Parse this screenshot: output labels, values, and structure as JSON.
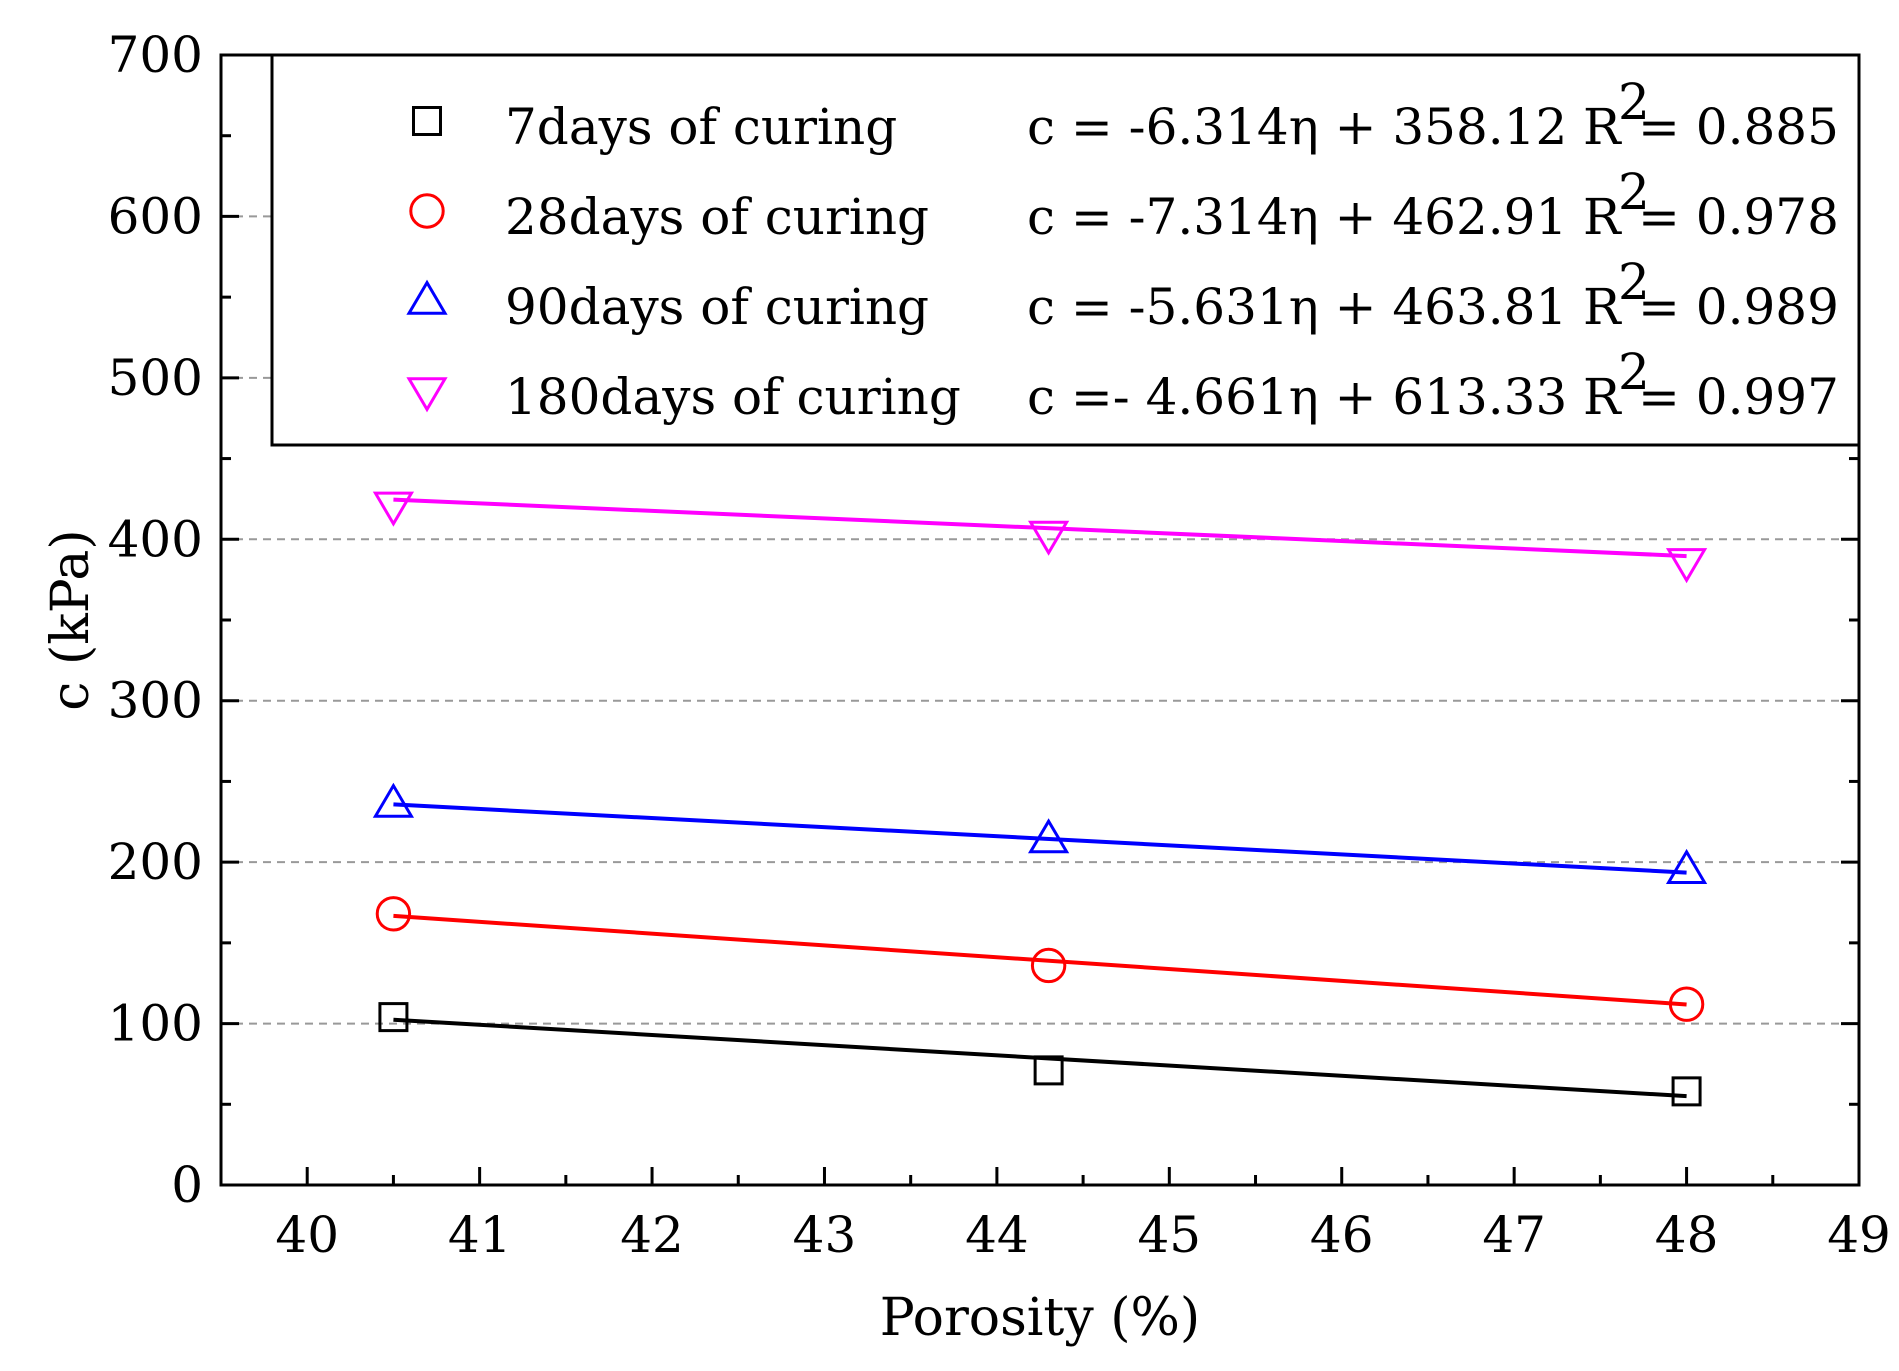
{
  "chart_data": {
    "type": "scatter",
    "xlabel": "Porosity (%)",
    "ylabel": "c (kPa)",
    "xlim": [
      39.5,
      49
    ],
    "ylim": [
      0,
      700
    ],
    "xticks": [
      "40",
      "41",
      "42",
      "43",
      "44",
      "45",
      "46",
      "47",
      "48",
      "49"
    ],
    "yticks": [
      "0",
      "100",
      "200",
      "300",
      "400",
      "500",
      "600",
      "700"
    ],
    "grid": "horizontal dashed",
    "legend_position": "top",
    "series": [
      {
        "name": "7days of curing",
        "color": "#000000",
        "marker": "square",
        "x": [
          40.5,
          44.3,
          48.0
        ],
        "y": [
          104,
          71,
          58
        ],
        "fit": {
          "slope": -6.314,
          "intercept": 358.12,
          "x_range": [
            40.5,
            48.0
          ]
        },
        "equation": "c = -6.314η + 358.12",
        "r2_label": "R",
        "r2_sup": "2",
        "r2_value": "= 0.885"
      },
      {
        "name": "28days of curing",
        "color": "#ff0000",
        "marker": "circle",
        "x": [
          40.5,
          44.3,
          48.0
        ],
        "y": [
          168,
          136,
          112
        ],
        "fit": {
          "slope": -7.314,
          "intercept": 462.91,
          "x_range": [
            40.5,
            48.0
          ]
        },
        "equation": "c = -7.314η + 462.91",
        "r2_label": "R",
        "r2_sup": "2",
        "r2_value": "= 0.978"
      },
      {
        "name": "90days of curing",
        "color": "#0000ff",
        "marker": "triangle-up",
        "x": [
          40.5,
          44.3,
          48.0
        ],
        "y": [
          236,
          214,
          195
        ],
        "fit": {
          "slope": -5.631,
          "intercept": 463.81,
          "x_range": [
            40.5,
            48.0
          ]
        },
        "equation": "c = -5.631η + 463.81",
        "r2_label": "R",
        "r2_sup": "2",
        "r2_value": "= 0.989"
      },
      {
        "name": "180days of curing",
        "color": "#ff00ff",
        "marker": "triangle-down",
        "x": [
          40.5,
          44.3,
          48.0
        ],
        "y": [
          421,
          403,
          386
        ],
        "fit": {
          "slope": -4.661,
          "intercept": 613.33,
          "x_range": [
            40.5,
            48.0
          ]
        },
        "equation": "c =- 4.661η + 613.33",
        "r2_label": "R",
        "r2_sup": "2",
        "r2_value": "= 0.997"
      }
    ]
  }
}
